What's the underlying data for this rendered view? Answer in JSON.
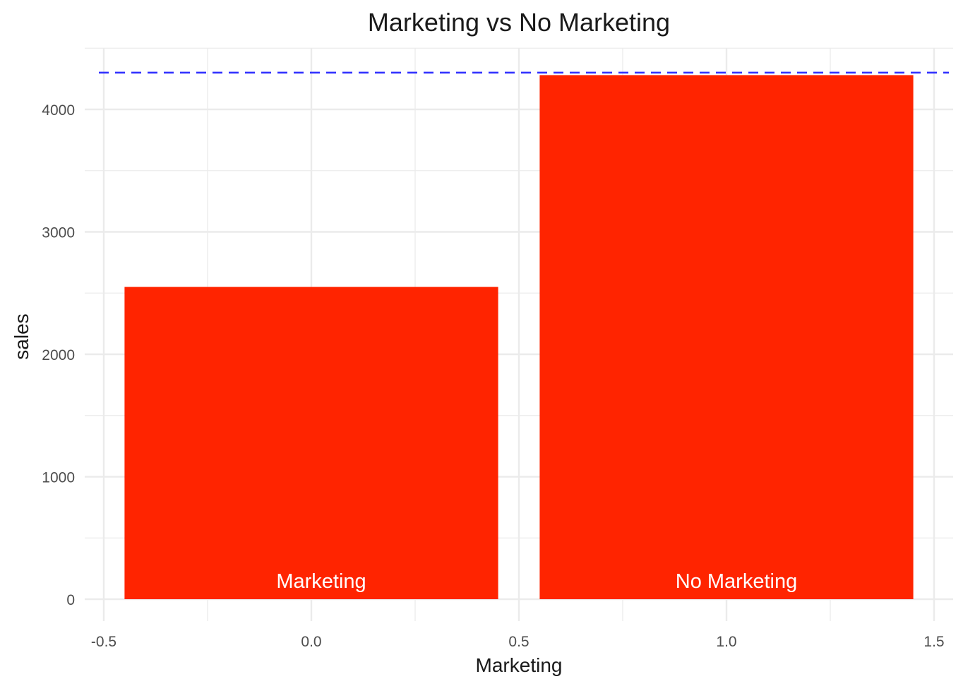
{
  "chart_data": {
    "type": "bar",
    "title": "Marketing vs No Marketing",
    "xlabel": "Marketing",
    "ylabel": "sales",
    "xlim": [
      -0.5,
      1.5
    ],
    "ylim": [
      0,
      4300
    ],
    "x_ticks": [
      "-0.5",
      "0.0",
      "0.5",
      "1.0",
      "1.5"
    ],
    "x_tick_values": [
      -0.5,
      0.0,
      0.5,
      1.0,
      1.5
    ],
    "y_ticks": [
      "0",
      "1000",
      "2000",
      "3000",
      "4000"
    ],
    "y_tick_values": [
      0,
      1000,
      2000,
      3000,
      4000
    ],
    "bars": [
      {
        "label": "Marketing",
        "x": 0.0,
        "value": 2550
      },
      {
        "label": "No Marketing",
        "x": 1.0,
        "value": 4280
      }
    ],
    "reference_line": {
      "value": 4300,
      "style": "dashed"
    },
    "grid": true,
    "legend": "none",
    "colors": {
      "bar": "#ff2400",
      "reference_line": "#3333ff",
      "grid": "#ebebeb",
      "bar_label": "#ffffff"
    }
  }
}
